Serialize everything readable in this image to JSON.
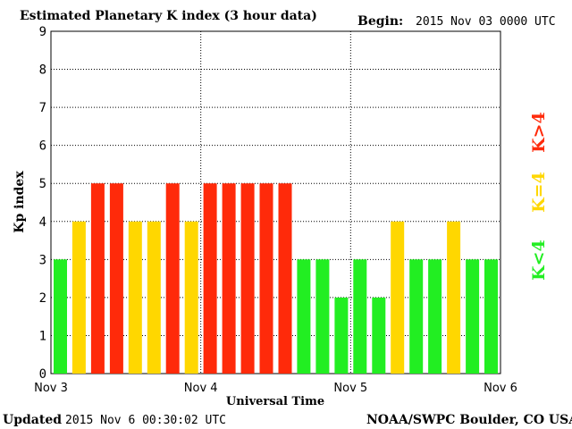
{
  "header": {
    "title": "Estimated Planetary K index (3 hour data)",
    "begin_label": "Begin:",
    "begin_value": "2015 Nov 03 0000 UTC"
  },
  "footer": {
    "updated_label": "Updated",
    "updated_value": "2015 Nov  6 00:30:02 UTC",
    "source": "NOAA/SWPC Boulder, CO USA"
  },
  "legend": [
    {
      "label": "K<4",
      "color": "#22ee22"
    },
    {
      "label": "K=4",
      "color": "#ffd700"
    },
    {
      "label": "K>4",
      "color": "#ff2a0a"
    }
  ],
  "chart_data": {
    "type": "bar",
    "title": "Estimated Planetary K index (3 hour data)",
    "xlabel": "Universal Time",
    "ylabel": "Kp index",
    "ylim": [
      0,
      9
    ],
    "yticks": [
      0,
      1,
      2,
      3,
      4,
      5,
      6,
      7,
      8,
      9
    ],
    "xticks": [
      "Nov 3",
      "Nov 4",
      "Nov 5",
      "Nov 6"
    ],
    "bars_per_day": 8,
    "values": [
      3,
      4,
      5,
      5,
      4,
      4,
      5,
      4,
      5,
      5,
      5,
      5,
      5,
      3,
      3,
      2,
      3,
      2,
      4,
      3,
      3,
      4,
      3,
      3
    ],
    "colors": {
      "low": "#22ee22",
      "equal": "#ffd700",
      "high": "#ff2a0a"
    },
    "grid": true,
    "legend_position": "right"
  }
}
